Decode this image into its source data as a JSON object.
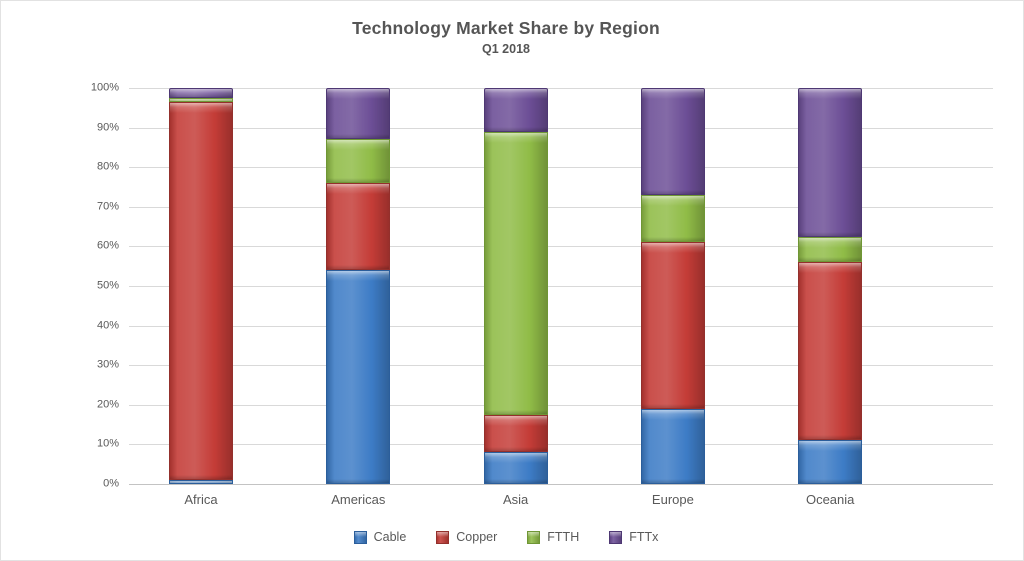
{
  "chart": {
    "title": "Technology Market Share by Region",
    "subtitle": "Q1 2018"
  },
  "chart_data": {
    "type": "bar",
    "stacked": true,
    "title": "Technology Market Share by Region",
    "subtitle": "Q1 2018",
    "categories": [
      "Africa",
      "Americas",
      "Asia",
      "Europe",
      "Oceania"
    ],
    "series": [
      {
        "name": "Cable",
        "color": "#3D7CC6",
        "border": "#2B5E9B",
        "values": [
          1,
          54,
          8,
          19,
          11
        ]
      },
      {
        "name": "Copper",
        "color": "#C43C37",
        "border": "#93302C",
        "values": [
          95.5,
          22,
          9.5,
          42,
          45
        ]
      },
      {
        "name": "FTTH",
        "color": "#90BC47",
        "border": "#6F9635",
        "values": [
          1,
          11,
          71.5,
          12,
          6.5
        ]
      },
      {
        "name": "FTTx",
        "color": "#6C4E96",
        "border": "#4E3873",
        "values": [
          2.5,
          13,
          11,
          27,
          37.5
        ]
      }
    ],
    "xlabel": "",
    "ylabel": "",
    "ylim": [
      0,
      100
    ],
    "ytick_step": 10,
    "ytick_labels": [
      "0%",
      "10%",
      "20%",
      "30%",
      "40%",
      "50%",
      "60%",
      "70%",
      "80%",
      "90%",
      "100%"
    ],
    "grid": true,
    "legend_position": "bottom"
  },
  "colors": {
    "title_text": "#555555",
    "axis_text": "#595959",
    "gridline": "#d9d9d9",
    "axis_line": "#c3c3c3",
    "background": "#ffffff"
  }
}
